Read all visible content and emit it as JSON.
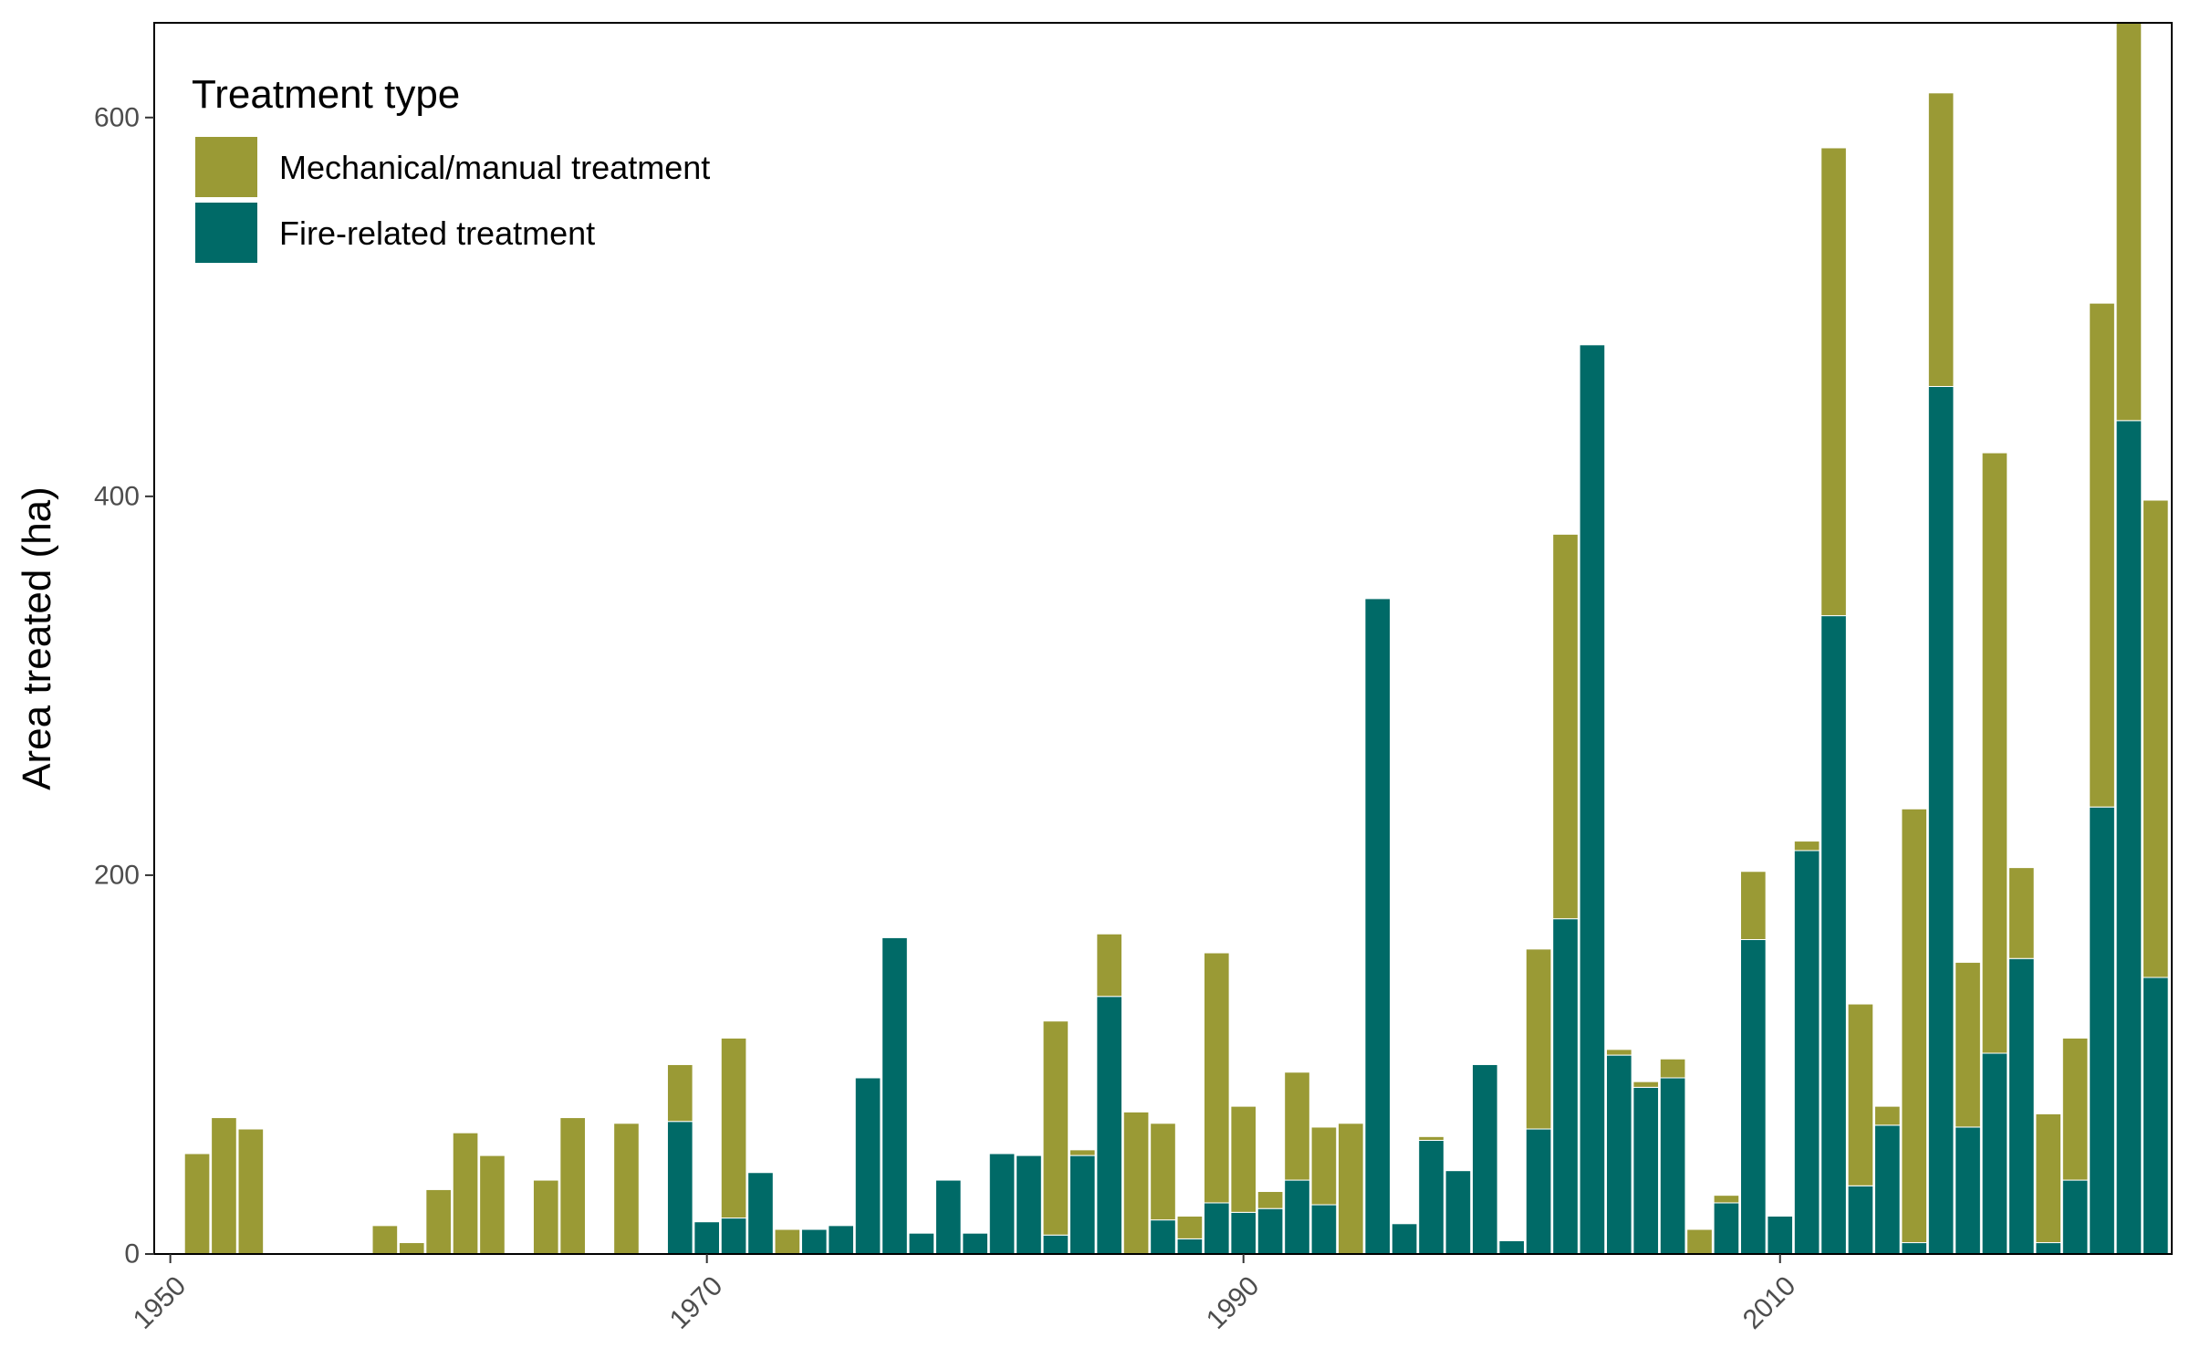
{
  "chart_data": {
    "type": "bar",
    "stacked": true,
    "xlabel": "",
    "ylabel": "Area treated (ha)",
    "xlim": [
      1949.4,
      2024.6
    ],
    "ylim": [
      0,
      650
    ],
    "x_ticks": [
      1950,
      1970,
      1990,
      2010
    ],
    "y_ticks": [
      0,
      200,
      400,
      600
    ],
    "grid": false,
    "legend": {
      "title": "Treatment type",
      "position": "top-left"
    },
    "colors": {
      "mechanical": "#9a9a35",
      "fire": "#006a67"
    },
    "x": [
      1951,
      1952,
      1953,
      1954,
      1955,
      1956,
      1957,
      1958,
      1959,
      1960,
      1961,
      1962,
      1963,
      1964,
      1965,
      1966,
      1967,
      1968,
      1969,
      1970,
      1971,
      1972,
      1973,
      1974,
      1975,
      1976,
      1977,
      1978,
      1979,
      1980,
      1981,
      1982,
      1983,
      1984,
      1985,
      1986,
      1987,
      1988,
      1989,
      1990,
      1991,
      1992,
      1993,
      1994,
      1995,
      1996,
      1997,
      1998,
      1999,
      2000,
      2001,
      2002,
      2003,
      2004,
      2005,
      2006,
      2007,
      2008,
      2009,
      2010,
      2011,
      2012,
      2013,
      2014,
      2015,
      2016,
      2017,
      2018,
      2019,
      2020,
      2021,
      2022,
      2023,
      2024
    ],
    "series": [
      {
        "name": "Fire-related treatment",
        "key": "fire",
        "values": [
          0,
          0,
          0,
          0,
          0,
          0,
          0,
          0,
          0,
          0,
          0,
          0,
          0,
          0,
          0,
          0,
          0,
          0,
          70,
          17,
          19,
          43,
          0,
          13,
          15,
          93,
          167,
          11,
          39,
          11,
          53,
          52,
          10,
          52,
          136,
          0,
          18,
          8,
          27,
          22,
          24,
          39,
          26,
          0,
          346,
          16,
          60,
          44,
          100,
          7,
          66,
          177,
          480,
          105,
          88,
          93,
          0,
          27,
          166,
          20,
          213,
          337,
          36,
          68,
          6,
          458,
          67,
          106,
          156,
          6,
          39,
          236,
          440,
          146
        ]
      },
      {
        "name": "Mechanical/manual treatment",
        "key": "mechanical",
        "values": [
          53,
          72,
          66,
          0,
          0,
          0,
          0,
          15,
          6,
          34,
          64,
          52,
          0,
          39,
          72,
          0,
          69,
          0,
          30,
          0,
          95,
          0,
          13,
          0,
          0,
          0,
          0,
          0,
          0,
          0,
          0,
          0,
          113,
          3,
          33,
          75,
          51,
          12,
          132,
          56,
          9,
          57,
          41,
          69,
          0,
          0,
          2,
          0,
          0,
          0,
          95,
          203,
          0,
          3,
          3,
          10,
          13,
          4,
          36,
          0,
          5,
          247,
          96,
          10,
          229,
          155,
          87,
          317,
          48,
          68,
          75,
          266,
          210,
          252
        ]
      }
    ]
  }
}
